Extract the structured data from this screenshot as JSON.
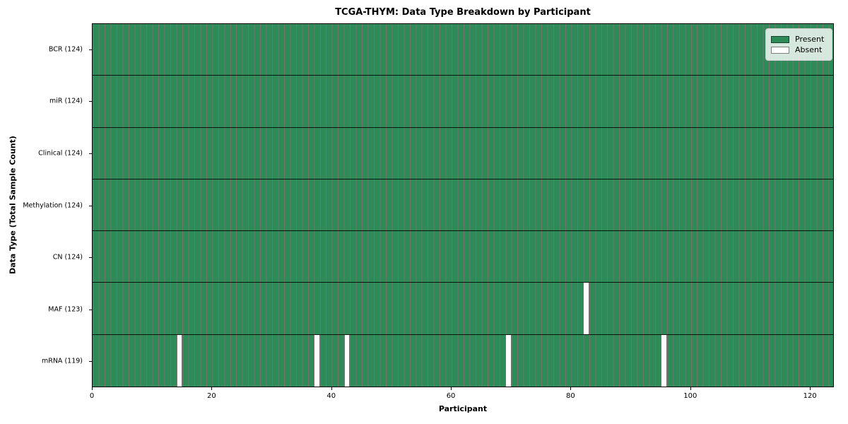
{
  "figure": {
    "title": "TCGA-THYM: Data Type Breakdown by Participant"
  },
  "chart_data": {
    "type": "heatmap",
    "title": "TCGA-THYM: Data Type Breakdown by Participant",
    "xlabel": "Participant",
    "ylabel": "Data Type (Total Sample Count)",
    "x_range": [
      0,
      124
    ],
    "x_ticks": [
      0,
      20,
      40,
      60,
      80,
      100,
      120
    ],
    "n_participants": 124,
    "grid": false,
    "legend_position": "upper right",
    "rows": [
      {
        "label": "BCR (124)",
        "data_type": "BCR",
        "present_count": 124,
        "absent_participants": []
      },
      {
        "label": "miR (124)",
        "data_type": "miR",
        "present_count": 124,
        "absent_participants": []
      },
      {
        "label": "Clinical (124)",
        "data_type": "Clinical",
        "present_count": 124,
        "absent_participants": []
      },
      {
        "label": "Methylation (124)",
        "data_type": "Methylation",
        "present_count": 124,
        "absent_participants": []
      },
      {
        "label": "CN (124)",
        "data_type": "CN",
        "present_count": 124,
        "absent_participants": []
      },
      {
        "label": "MAF (123)",
        "data_type": "MAF",
        "present_count": 123,
        "absent_participants": [
          82
        ]
      },
      {
        "label": "mRNA (119)",
        "data_type": "mRNA",
        "present_count": 119,
        "absent_participants": [
          14,
          37,
          42,
          69,
          95
        ]
      }
    ],
    "legend": [
      {
        "label": "Present",
        "color": "#2E8B57"
      },
      {
        "label": "Absent",
        "color": "#FFFFFF"
      }
    ],
    "colors": {
      "present": "#2E8B57",
      "absent": "#FFFFFF",
      "cell_edge": "rgba(0,0,0,0.55)",
      "row_separator": "rgba(0,0,0,0.85)"
    }
  }
}
